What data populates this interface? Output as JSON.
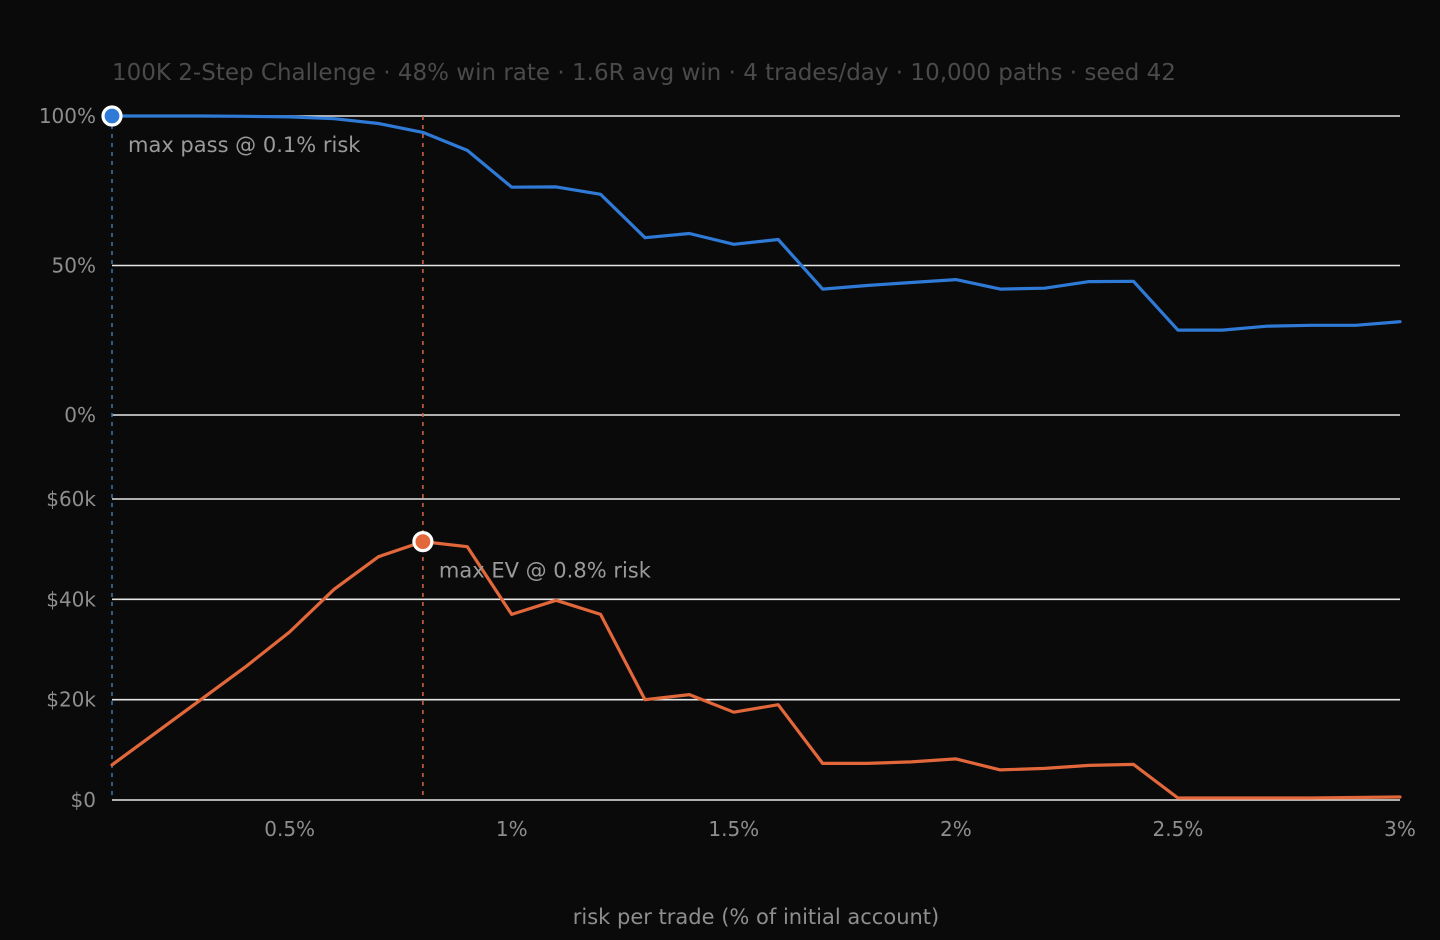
{
  "chart_data": {
    "type": "line",
    "subtitle": "100K 2-Step Challenge · 48% win rate · 1.6R avg win · 4 trades/day · 10,000 paths · seed 42",
    "xlabel": "risk per trade (% of initial account)",
    "x": [
      0.1,
      0.2,
      0.3,
      0.4,
      0.5,
      0.6,
      0.7,
      0.8,
      0.9,
      1.0,
      1.1,
      1.2,
      1.3,
      1.4,
      1.5,
      1.6,
      1.7,
      1.8,
      1.9,
      2.0,
      2.1,
      2.2,
      2.3,
      2.4,
      2.5,
      2.6,
      2.7,
      2.8,
      2.9,
      3.0
    ],
    "xlim": [
      0.1,
      3.0
    ],
    "x_ticks": [
      {
        "value": 0.5,
        "label": "0.5%"
      },
      {
        "value": 1.0,
        "label": "1%"
      },
      {
        "value": 1.5,
        "label": "1.5%"
      },
      {
        "value": 2.0,
        "label": "2%"
      },
      {
        "value": 2.5,
        "label": "2.5%"
      },
      {
        "value": 3.0,
        "label": "3%"
      }
    ],
    "panels": [
      {
        "id": "pass",
        "ylim": [
          0,
          100
        ],
        "y_ticks": [
          {
            "value": 100,
            "label": "100%"
          },
          {
            "value": 50,
            "label": "50%"
          },
          {
            "value": 0,
            "label": "0%"
          }
        ],
        "series": {
          "color": "#2f7ad6",
          "values": [
            100,
            100,
            100,
            99.9,
            99.7,
            99.1,
            97.5,
            94.5,
            88.5,
            76.2,
            76.3,
            73.8,
            59.3,
            60.7,
            57.1,
            58.7,
            42.1,
            43.3,
            44.3,
            45.3,
            42.1,
            42.4,
            44.6,
            44.7,
            28.4,
            28.4,
            29.7,
            30.0,
            30.0,
            31.2
          ]
        },
        "marker": {
          "x": 0.1,
          "y": 100,
          "label": "max pass @ 0.1% risk"
        }
      },
      {
        "id": "ev",
        "ylim": [
          0,
          60000
        ],
        "y_ticks": [
          {
            "value": 60000,
            "label": "$60k"
          },
          {
            "value": 40000,
            "label": "$40k"
          },
          {
            "value": 20000,
            "label": "$20k"
          },
          {
            "value": 0,
            "label": "$0"
          }
        ],
        "series": {
          "color": "#e2673a",
          "values": [
            7000,
            13500,
            20000,
            26500,
            33500,
            42000,
            48500,
            51500,
            50500,
            37000,
            39800,
            37000,
            20000,
            21000,
            17500,
            19000,
            7300,
            7300,
            7600,
            8200,
            6000,
            6300,
            6900,
            7100,
            400,
            400,
            400,
            400,
            500,
            600
          ]
        },
        "marker": {
          "x": 0.8,
          "y": 51500,
          "label": "max EV @ 0.8% risk"
        }
      }
    ]
  }
}
